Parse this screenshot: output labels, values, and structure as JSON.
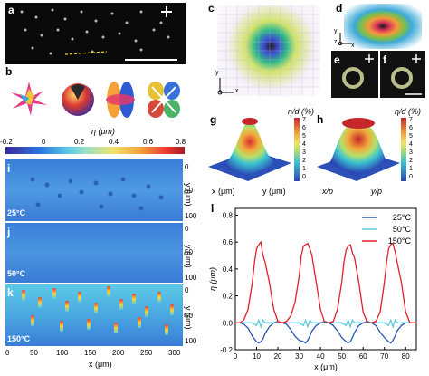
{
  "panels": {
    "a": "a",
    "b": "b",
    "c": "c",
    "d": "d",
    "e": "e",
    "f": "f",
    "g": "g",
    "h": "h",
    "i": "i",
    "j": "j",
    "k": "k",
    "l": "l"
  },
  "colorbar": {
    "label": "η (μm)",
    "ticks": [
      "-0.2",
      "0",
      "0.2",
      "0.4",
      "0.6",
      "0.8"
    ]
  },
  "panel_g": {
    "cbar_label": "η/d (%)",
    "cbar_ticks": [
      "7",
      "6",
      "5",
      "4",
      "3",
      "2",
      "1",
      "0"
    ],
    "xlabel": "x (μm)",
    "ylabel": "y (μm)"
  },
  "panel_h": {
    "cbar_label": "η/d (%)",
    "cbar_ticks": [
      "7",
      "6",
      "5",
      "4",
      "3",
      "2",
      "1",
      "0"
    ],
    "xlabel": "x/p",
    "ylabel": "y/p"
  },
  "axes_c": {
    "y": "y",
    "x": "x"
  },
  "axes_d": {
    "y": "y",
    "z": "z",
    "x": "x"
  },
  "maps": {
    "i_temp": "25°C",
    "j_temp": "50°C",
    "k_temp": "150°C",
    "y_ticks": [
      "0",
      "50",
      "100"
    ],
    "y_label": "y (μm)",
    "x_ticks": [
      "0",
      "50",
      "100",
      "150",
      "200",
      "250",
      "300"
    ],
    "x_label": "x (μm)"
  },
  "chart_data": {
    "type": "line",
    "xlabel": "x (μm)",
    "ylabel": "η (μm)",
    "xlim": [
      0,
      85
    ],
    "ylim": [
      -0.2,
      0.85
    ],
    "x_ticks": [
      0,
      10,
      20,
      30,
      40,
      50,
      60,
      70,
      80
    ],
    "y_ticks": [
      -0.2,
      0.0,
      0.2,
      0.4,
      0.6,
      0.8
    ],
    "legend_position": "top-right",
    "series": [
      {
        "name": "25°C",
        "color": "#2a56b0",
        "x": [
          0,
          2,
          4,
          6,
          8,
          10,
          11,
          12,
          13,
          14,
          16,
          18,
          20,
          22,
          24,
          26,
          28,
          30,
          32,
          33,
          34,
          35,
          36,
          38,
          40,
          42,
          44,
          46,
          48,
          50,
          52,
          53,
          54,
          55,
          56,
          58,
          60,
          62,
          64,
          66,
          68,
          70,
          72,
          73,
          74,
          75,
          76,
          78,
          80,
          82,
          85
        ],
        "y": [
          0.0,
          0.0,
          -0.01,
          -0.04,
          -0.1,
          -0.14,
          -0.15,
          -0.14,
          -0.12,
          -0.08,
          -0.03,
          0.0,
          0.01,
          0.0,
          -0.01,
          -0.05,
          -0.1,
          -0.13,
          -0.14,
          -0.15,
          -0.13,
          -0.1,
          -0.06,
          -0.02,
          0.0,
          0.01,
          0.0,
          -0.02,
          -0.06,
          -0.11,
          -0.14,
          -0.15,
          -0.14,
          -0.11,
          -0.07,
          -0.02,
          0.0,
          0.01,
          0.0,
          -0.02,
          -0.07,
          -0.11,
          -0.14,
          -0.15,
          -0.13,
          -0.1,
          -0.06,
          -0.02,
          0.0,
          0.0,
          0.0
        ]
      },
      {
        "name": "50°C",
        "color": "#5ec8dc",
        "x": [
          0,
          4,
          8,
          10,
          11,
          12,
          13,
          14,
          18,
          22,
          26,
          30,
          32,
          33,
          34,
          35,
          36,
          40,
          44,
          48,
          50,
          52,
          53,
          54,
          55,
          56,
          60,
          64,
          68,
          70,
          72,
          73,
          74,
          75,
          76,
          80,
          85
        ],
        "y": [
          0.0,
          0.0,
          0.0,
          -0.02,
          0.02,
          -0.03,
          0.02,
          0.0,
          0.0,
          0.0,
          0.0,
          0.0,
          -0.02,
          0.02,
          -0.03,
          0.02,
          0.0,
          0.0,
          0.0,
          0.0,
          0.0,
          -0.02,
          0.02,
          -0.03,
          0.02,
          0.0,
          0.0,
          0.0,
          0.0,
          0.0,
          -0.02,
          0.02,
          -0.03,
          0.02,
          0.0,
          0.0,
          0.0
        ]
      },
      {
        "name": "150°C",
        "color": "#e0202a",
        "x": [
          0,
          2,
          4,
          6,
          8,
          9,
          10,
          11,
          12,
          13,
          14,
          16,
          18,
          20,
          22,
          24,
          26,
          28,
          30,
          31,
          32,
          33,
          34,
          35,
          36,
          38,
          40,
          42,
          44,
          46,
          48,
          50,
          51,
          52,
          53,
          54,
          55,
          56,
          58,
          60,
          62,
          64,
          66,
          68,
          70,
          71,
          72,
          73,
          74,
          75,
          76,
          78,
          80,
          82,
          85
        ],
        "y": [
          0.0,
          0.0,
          0.02,
          0.1,
          0.3,
          0.45,
          0.55,
          0.58,
          0.6,
          0.5,
          0.45,
          0.3,
          0.1,
          0.01,
          0.0,
          0.01,
          0.05,
          0.15,
          0.35,
          0.5,
          0.57,
          0.58,
          0.59,
          0.55,
          0.5,
          0.3,
          0.1,
          0.0,
          0.0,
          0.01,
          0.1,
          0.3,
          0.45,
          0.54,
          0.57,
          0.58,
          0.52,
          0.48,
          0.3,
          0.08,
          0.0,
          0.0,
          0.01,
          0.08,
          0.3,
          0.45,
          0.55,
          0.58,
          0.59,
          0.53,
          0.45,
          0.3,
          0.08,
          0.0,
          0.0
        ]
      }
    ]
  }
}
